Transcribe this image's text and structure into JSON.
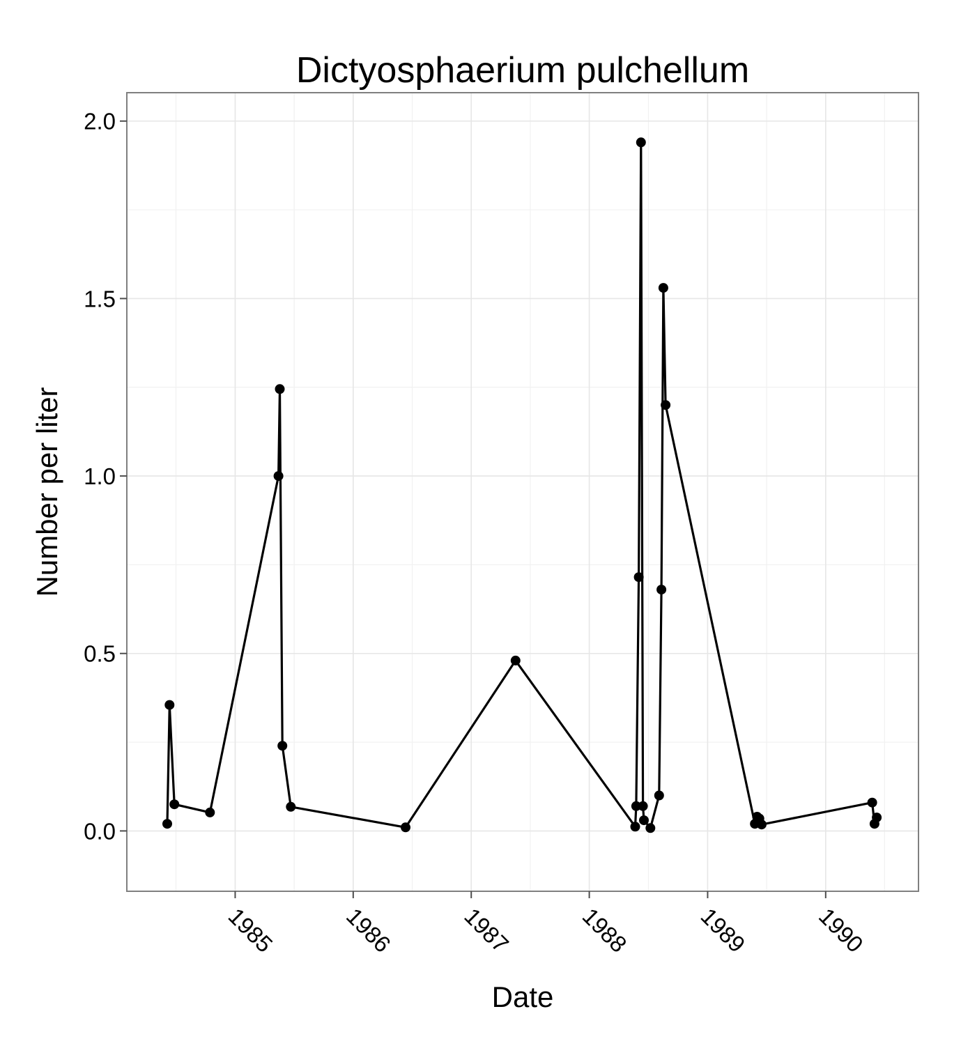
{
  "chart_data": {
    "type": "line",
    "title": "Dictyosphaerium pulchellum",
    "xlabel": "Date",
    "ylabel": "Number per liter",
    "x_axis_type": "date",
    "xlim": [
      "1984-02-01",
      "1990-10-15"
    ],
    "ylim": [
      -0.17,
      2.08
    ],
    "x_ticks": [
      "1985",
      "1986",
      "1987",
      "1988",
      "1989",
      "1990"
    ],
    "y_ticks": [
      "0.0",
      "0.5",
      "1.0",
      "1.5",
      "2.0"
    ],
    "x_tick_rotation": "slanted",
    "grid": true,
    "legend": "none",
    "colors": {
      "line": "#000000",
      "point": "#000000",
      "grid": "#ebebeb",
      "panel_border": "#7f7f7f"
    },
    "series": [
      {
        "points": [
          {
            "x": "1984-06-05",
            "y": 0.02
          },
          {
            "x": "1984-06-12",
            "y": 0.355
          },
          {
            "x": "1984-06-27",
            "y": 0.075
          },
          {
            "x": "1984-10-15",
            "y": 0.052
          },
          {
            "x": "1985-05-15",
            "y": 1.0
          },
          {
            "x": "1985-05-19",
            "y": 1.245
          },
          {
            "x": "1985-05-27",
            "y": 0.24
          },
          {
            "x": "1985-06-22",
            "y": 0.068
          },
          {
            "x": "1986-06-12",
            "y": 0.01
          },
          {
            "x": "1987-05-18",
            "y": 0.48
          },
          {
            "x": "1988-05-22",
            "y": 0.012
          },
          {
            "x": "1988-05-25",
            "y": 0.07
          },
          {
            "x": "1988-06-02",
            "y": 0.715
          },
          {
            "x": "1988-06-09",
            "y": 1.94
          },
          {
            "x": "1988-06-15",
            "y": 0.07
          },
          {
            "x": "1988-06-18",
            "y": 0.03
          },
          {
            "x": "1988-07-08",
            "y": 0.008
          },
          {
            "x": "1988-08-04",
            "y": 0.1
          },
          {
            "x": "1988-08-11",
            "y": 0.68
          },
          {
            "x": "1988-08-17",
            "y": 1.53
          },
          {
            "x": "1988-08-24",
            "y": 1.2
          },
          {
            "x": "1989-05-27",
            "y": 0.02
          },
          {
            "x": "1989-06-03",
            "y": 0.04
          },
          {
            "x": "1989-06-10",
            "y": 0.035
          },
          {
            "x": "1989-06-17",
            "y": 0.018
          },
          {
            "x": "1990-05-25",
            "y": 0.08
          },
          {
            "x": "1990-06-01",
            "y": 0.02
          },
          {
            "x": "1990-06-08",
            "y": 0.038
          }
        ]
      }
    ]
  }
}
